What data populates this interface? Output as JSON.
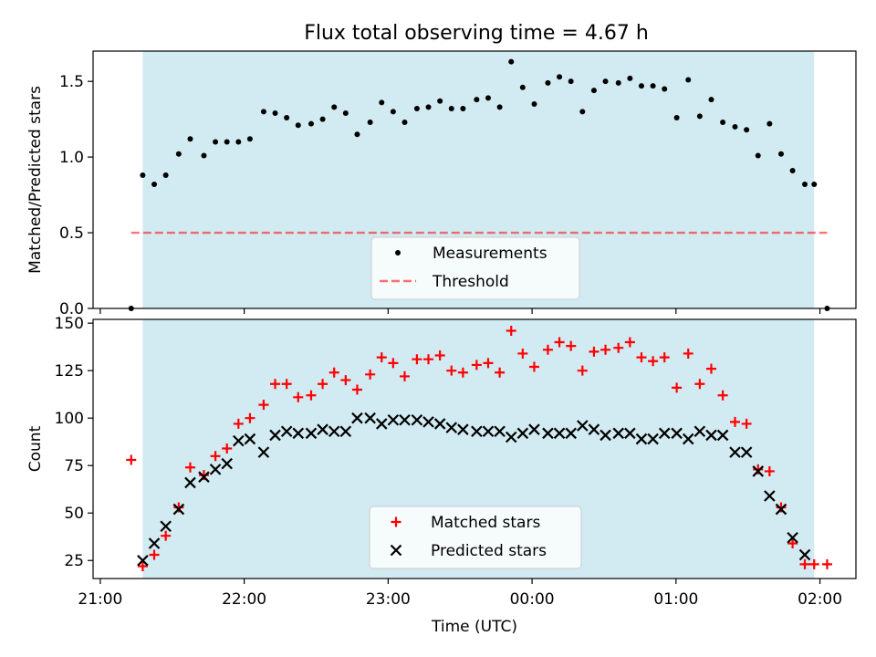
{
  "title": "Flux total observing time = 4.67 h",
  "shade_color": "#add8e6",
  "colors": {
    "measurements": "#000000",
    "threshold": "#ff0000",
    "matched": "#ff0000",
    "predicted": "#000000"
  },
  "chart_data": [
    {
      "type": "scatter",
      "title": "Flux total observing time = 4.67 h",
      "xlabel": "",
      "ylabel": "Matched/Predicted stars",
      "xlim": [
        -0.05,
        5.25
      ],
      "ylim": [
        0,
        1.7
      ],
      "x_ticks": [
        0,
        1,
        2,
        3,
        4,
        5
      ],
      "y_ticks": [
        "0.0",
        "0.5",
        "1.0",
        "1.5"
      ],
      "shaded_span": [
        0.295,
        4.96
      ],
      "legend": {
        "position": "lower center",
        "entries": [
          "Measurements",
          "Threshold"
        ]
      },
      "threshold": {
        "name": "Threshold",
        "y": 0.5,
        "x": [
          0.215,
          5.05
        ]
      },
      "series": [
        {
          "name": "Measurements",
          "x": [
            0.215,
            0.295,
            0.375,
            0.455,
            0.545,
            0.625,
            0.72,
            0.8,
            0.88,
            0.96,
            1.04,
            1.135,
            1.215,
            1.295,
            1.375,
            1.465,
            1.545,
            1.625,
            1.705,
            1.785,
            1.875,
            1.955,
            2.035,
            2.115,
            2.2,
            2.28,
            2.36,
            2.44,
            2.52,
            2.615,
            2.695,
            2.775,
            2.855,
            2.935,
            3.015,
            3.11,
            3.19,
            3.27,
            3.35,
            3.43,
            3.51,
            3.6,
            3.68,
            3.76,
            3.84,
            3.92,
            4.005,
            4.085,
            4.165,
            4.245,
            4.325,
            4.41,
            4.49,
            4.57,
            4.65,
            4.73,
            4.81,
            4.895,
            4.96,
            5.05
          ],
          "y": [
            0.0,
            0.88,
            0.82,
            0.88,
            1.02,
            1.12,
            1.01,
            1.1,
            1.1,
            1.1,
            1.12,
            1.3,
            1.29,
            1.26,
            1.21,
            1.22,
            1.25,
            1.33,
            1.29,
            1.15,
            1.23,
            1.36,
            1.3,
            1.23,
            1.32,
            1.33,
            1.37,
            1.32,
            1.32,
            1.38,
            1.39,
            1.33,
            1.63,
            1.46,
            1.35,
            1.49,
            1.53,
            1.5,
            1.3,
            1.44,
            1.5,
            1.49,
            1.52,
            1.47,
            1.47,
            1.45,
            1.26,
            1.51,
            1.27,
            1.38,
            1.23,
            1.2,
            1.18,
            1.01,
            1.22,
            1.02,
            0.91,
            0.82,
            0.82,
            0.0
          ]
        }
      ]
    },
    {
      "type": "scatter",
      "xlabel": "Time (UTC)",
      "ylabel": "Count",
      "xlim": [
        -0.05,
        5.25
      ],
      "ylim": [
        15.5,
        152
      ],
      "x_ticks": [
        0,
        1,
        2,
        3,
        4,
        5
      ],
      "x_tick_labels": [
        "21:00",
        "22:00",
        "23:00",
        "00:00",
        "01:00",
        "02:00"
      ],
      "y_ticks": [
        "25",
        "50",
        "75",
        "100",
        "125",
        "150"
      ],
      "shaded_span": [
        0.295,
        4.96
      ],
      "legend": {
        "position": "lower center",
        "entries": [
          "Matched stars",
          "Predicted stars"
        ]
      },
      "series": [
        {
          "name": "Matched stars",
          "marker": "+",
          "x": [
            0.215,
            0.295,
            0.375,
            0.455,
            0.545,
            0.625,
            0.72,
            0.8,
            0.88,
            0.96,
            1.04,
            1.135,
            1.215,
            1.295,
            1.375,
            1.465,
            1.545,
            1.625,
            1.705,
            1.785,
            1.875,
            1.955,
            2.035,
            2.115,
            2.2,
            2.28,
            2.36,
            2.44,
            2.52,
            2.615,
            2.695,
            2.775,
            2.855,
            2.935,
            3.015,
            3.11,
            3.19,
            3.27,
            3.35,
            3.43,
            3.51,
            3.6,
            3.68,
            3.76,
            3.84,
            3.92,
            4.005,
            4.085,
            4.165,
            4.245,
            4.325,
            4.41,
            4.49,
            4.57,
            4.65,
            4.73,
            4.81,
            4.895,
            4.96,
            5.05
          ],
          "y": [
            78,
            22,
            28,
            38,
            53,
            74,
            70,
            80,
            84,
            97,
            100,
            107,
            118,
            118,
            111,
            112,
            118,
            124,
            120,
            115,
            123,
            132,
            129,
            122,
            131,
            131,
            133,
            125,
            124,
            128,
            129,
            124,
            146,
            134,
            127,
            136,
            140,
            138,
            125,
            135,
            136,
            137,
            140,
            132,
            130,
            132,
            116,
            134,
            118,
            126,
            112,
            98,
            97,
            73,
            72,
            53,
            34,
            23,
            23,
            23
          ]
        },
        {
          "name": "Predicted stars",
          "marker": "x",
          "x": [
            0.295,
            0.375,
            0.455,
            0.545,
            0.625,
            0.72,
            0.8,
            0.88,
            0.96,
            1.04,
            1.135,
            1.215,
            1.295,
            1.375,
            1.465,
            1.545,
            1.625,
            1.705,
            1.785,
            1.875,
            1.955,
            2.035,
            2.115,
            2.2,
            2.28,
            2.36,
            2.44,
            2.52,
            2.615,
            2.695,
            2.775,
            2.855,
            2.935,
            3.015,
            3.11,
            3.19,
            3.27,
            3.35,
            3.43,
            3.51,
            3.6,
            3.68,
            3.76,
            3.84,
            3.92,
            4.005,
            4.085,
            4.165,
            4.245,
            4.325,
            4.41,
            4.49,
            4.57,
            4.65,
            4.73,
            4.81,
            4.895
          ],
          "y": [
            25,
            34,
            43,
            52,
            66,
            69,
            73,
            76,
            88,
            89,
            82,
            91,
            93,
            92,
            92,
            94,
            93,
            93,
            100,
            100,
            97,
            99,
            99,
            99,
            98,
            97,
            95,
            94,
            93,
            93,
            93,
            90,
            92,
            94,
            92,
            92,
            92,
            96,
            94,
            91,
            92,
            92,
            89,
            89,
            92,
            92,
            89,
            93,
            91,
            91,
            82,
            82,
            72,
            59,
            52,
            37,
            28
          ]
        }
      ]
    }
  ]
}
